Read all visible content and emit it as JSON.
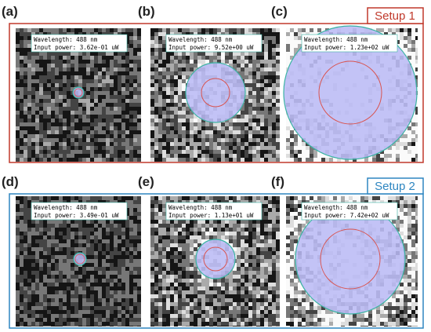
{
  "setups": [
    "Setup 1",
    "Setup 2"
  ],
  "panels": [
    {
      "label": "(a)",
      "wavelength": "Wavelength:  488 nm",
      "power": "Input power: 3.62e-01 uW"
    },
    {
      "label": "(b)",
      "wavelength": "Wavelength:  488 nm",
      "power": "Input power: 9.52e+00 uW"
    },
    {
      "label": "(c)",
      "wavelength": "Wavelength:  488 nm",
      "power": "Input power: 1.23e+02 uW"
    },
    {
      "label": "(d)",
      "wavelength": "Wavelength:  488 nm",
      "power": "Input power: 3.49e-01 uW"
    },
    {
      "label": "(e)",
      "wavelength": "Wavelength:  488 nm",
      "power": "Input power: 1.13e+01 uW"
    },
    {
      "label": "(f)",
      "wavelength": "Wavelength:  488 nm",
      "power": "Input power: 7.42e+02 uW"
    }
  ]
}
